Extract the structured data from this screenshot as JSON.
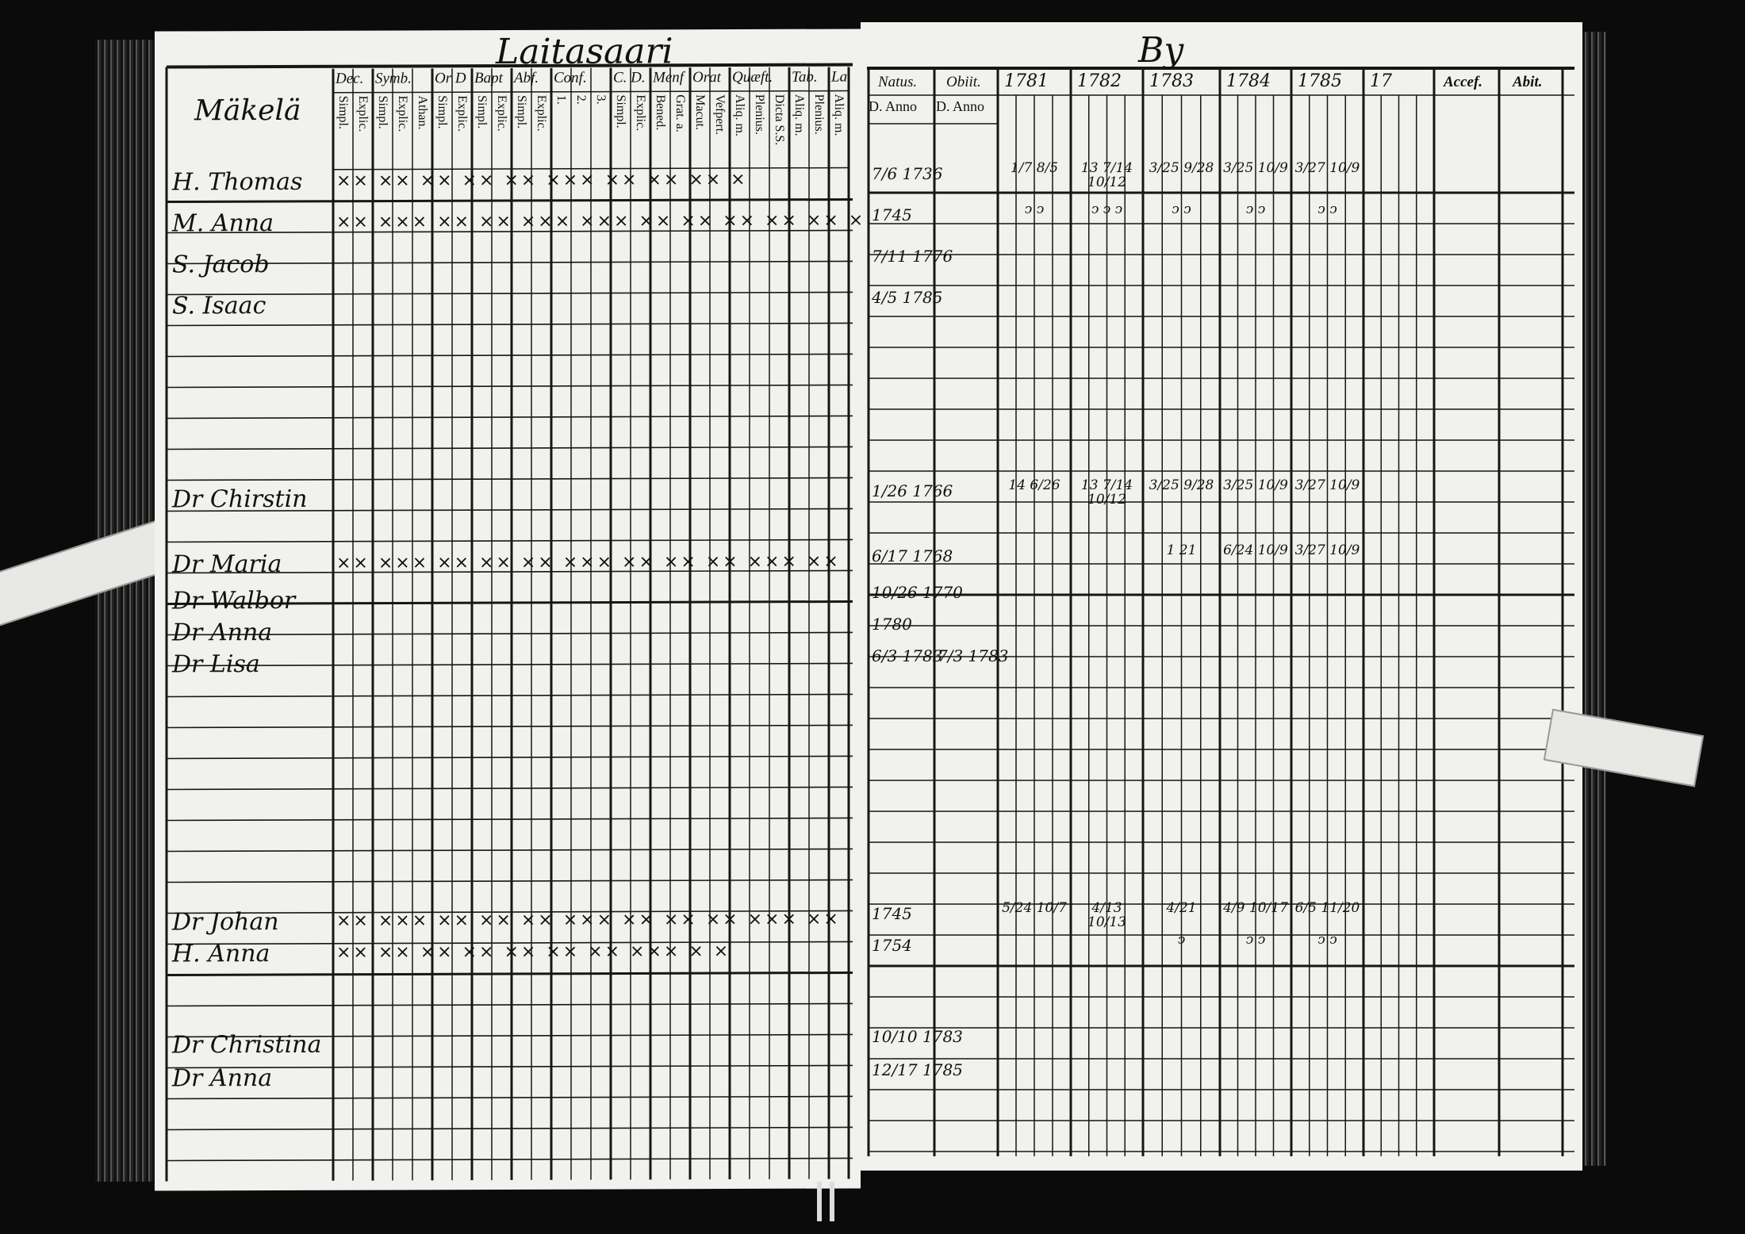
{
  "left_page": {
    "title": "Laitasaari",
    "farm": "Mäkelä",
    "group_headers": [
      "Dec.",
      "Symb.",
      "Or D",
      "Bapt",
      "Abf.",
      "Conf.",
      "C. D.",
      "Menf",
      "Orat",
      "Quæft.",
      "Tab.",
      "La."
    ],
    "sub_headers": [
      "Simpl.",
      "Explic.",
      "Simpl.",
      "Explic.",
      "Athan.",
      "Simpl.",
      "Explic.",
      "Simpl.",
      "Explic.",
      "Simpl.",
      "Explic.",
      "1.",
      "2.",
      "3.",
      "Simpl.",
      "Explic.",
      "Bened.",
      "Grat. a.",
      "Macut.",
      "Vefpert.",
      "Aliq. m.",
      "Plenius.",
      "Dicta S.S.",
      "Aliq. m.",
      "Plenius.",
      "Aliq. m."
    ],
    "rows": [
      {
        "name": "H. Thomas",
        "marks": "×× ×× ×× ×× ×× ××× ×× ×× ×× ×"
      },
      {
        "name": "M. Anna",
        "marks": "×× ××× ×× ×× ××× ××× ×× ×× ×× ×× ×× ×"
      },
      {
        "name": "S. Jacob",
        "marks": ""
      },
      {
        "name": "S. Isaac",
        "marks": ""
      },
      {
        "name": "Dr Chirstin",
        "marks": ""
      },
      {
        "name": "Dr Maria",
        "marks": "×× ××× ×× ×× ×× ××× ×× ×× ×× ××× ××"
      },
      {
        "name": "Dr Walbor",
        "marks": ""
      },
      {
        "name": "Dr Anna",
        "marks": ""
      },
      {
        "name": "Dr Lisa",
        "marks": ""
      },
      {
        "name": "Dr Johan",
        "marks": "×× ××× ×× ×× ×× ××× ×× ×× ×× ××× ××"
      },
      {
        "name": "H. Anna",
        "marks": "×× ××  ×× ×× ×× ××  ×× ××× ×     ×"
      },
      {
        "name": "Dr Christina",
        "marks": ""
      },
      {
        "name": "Dr Anna",
        "marks": ""
      }
    ]
  },
  "right_page": {
    "title": "By",
    "headers": {
      "natus": "Natus.",
      "obiit": "Obiit.",
      "natus_sub": "D. Anno",
      "obiit_sub": "D. Anno",
      "years": [
        "1781",
        "1782",
        "1783",
        "1784",
        "1785",
        "17"
      ],
      "accef": "Accef.",
      "abit": "Abit."
    },
    "rows": [
      {
        "natus": "7/6 1736",
        "obiit": "",
        "marks": [
          "1/7 8/5",
          "13 7/14 10/12",
          "3/25 9/28",
          "3/25 10/9",
          "3/27 10/9",
          ""
        ]
      },
      {
        "natus": "1745",
        "obiit": "",
        "marks": [
          "ↄ ↄ",
          "ↄ ↄ ↄ",
          "ↄ ↄ",
          "ↄ ↄ",
          "ↄ ↄ",
          ""
        ]
      },
      {
        "natus": "7/11 1776",
        "obiit": "",
        "marks": [
          "",
          "",
          "",
          "",
          "",
          ""
        ]
      },
      {
        "natus": "4/5 1785",
        "obiit": "",
        "marks": [
          "",
          "",
          "",
          "",
          "",
          ""
        ]
      },
      {
        "natus": "1/26 1766",
        "obiit": "",
        "marks": [
          "14 6/26",
          "13 7/14 10/12",
          "3/25 9/28",
          "3/25 10/9",
          "3/27 10/9",
          ""
        ]
      },
      {
        "natus": "6/17 1768",
        "obiit": "",
        "marks": [
          "",
          "",
          "1 21",
          "6/24 10/9",
          "3/27 10/9",
          ""
        ]
      },
      {
        "natus": "10/26 1770",
        "obiit": "",
        "marks": [
          "",
          "",
          "",
          "",
          "",
          ""
        ]
      },
      {
        "natus": "1780",
        "obiit": "",
        "marks": [
          "",
          "",
          "",
          "",
          "",
          ""
        ]
      },
      {
        "natus": "6/3 1783",
        "obiit": "7/3 1783",
        "marks": [
          "",
          "",
          "",
          "",
          "",
          ""
        ]
      },
      {
        "natus": "1745",
        "obiit": "",
        "marks": [
          "5/24 10/7",
          "4/13 10/13",
          "4/21",
          "4/9 10/17",
          "6/5 11/20",
          ""
        ]
      },
      {
        "natus": "1754",
        "obiit": "",
        "marks": [
          "",
          "",
          "ↄ",
          "ↄ ↄ",
          "ↄ ↄ",
          ""
        ]
      },
      {
        "natus": "10/10 1783",
        "obiit": "",
        "marks": [
          "",
          "",
          "",
          "",
          "",
          ""
        ]
      },
      {
        "natus": "12/17 1785",
        "obiit": "",
        "marks": [
          "",
          "",
          "",
          "",
          "",
          ""
        ]
      }
    ]
  },
  "colors": {
    "paper": "#f1f1ee",
    "ink": "#111111",
    "background": "#0b0b0b"
  }
}
